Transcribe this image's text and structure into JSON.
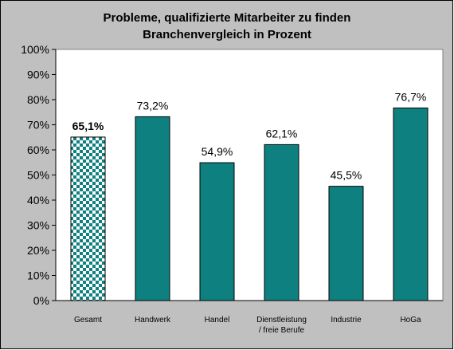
{
  "chart_data": {
    "type": "bar",
    "title_lines": [
      "Probleme, qualifizierte Mitarbeiter zu finden",
      "Branchenvergleich in Prozent"
    ],
    "categories": [
      [
        "Gesamt"
      ],
      [
        "Handwerk"
      ],
      [
        "Handel"
      ],
      [
        "Dienstleistung",
        "/ freie Berufe"
      ],
      [
        "Industrie"
      ],
      [
        "HoGa"
      ]
    ],
    "values": [
      65.1,
      73.2,
      54.9,
      62.1,
      45.5,
      76.7
    ],
    "value_labels": [
      "65,1%",
      "73,2%",
      "54,9%",
      "62,1%",
      "45,5%",
      "76,7%"
    ],
    "y_ticks": [
      "0%",
      "10%",
      "20%",
      "30%",
      "40%",
      "50%",
      "60%",
      "70%",
      "80%",
      "90%",
      "100%"
    ],
    "ylim": [
      0,
      100
    ],
    "grid": false,
    "highlight_index": 0,
    "colors": {
      "bar": "#0F8080",
      "bar_highlight": "#0F8080",
      "background_outer": "#C0C0C0",
      "plot_area": "#FFFFFF",
      "text": "#000000"
    }
  }
}
